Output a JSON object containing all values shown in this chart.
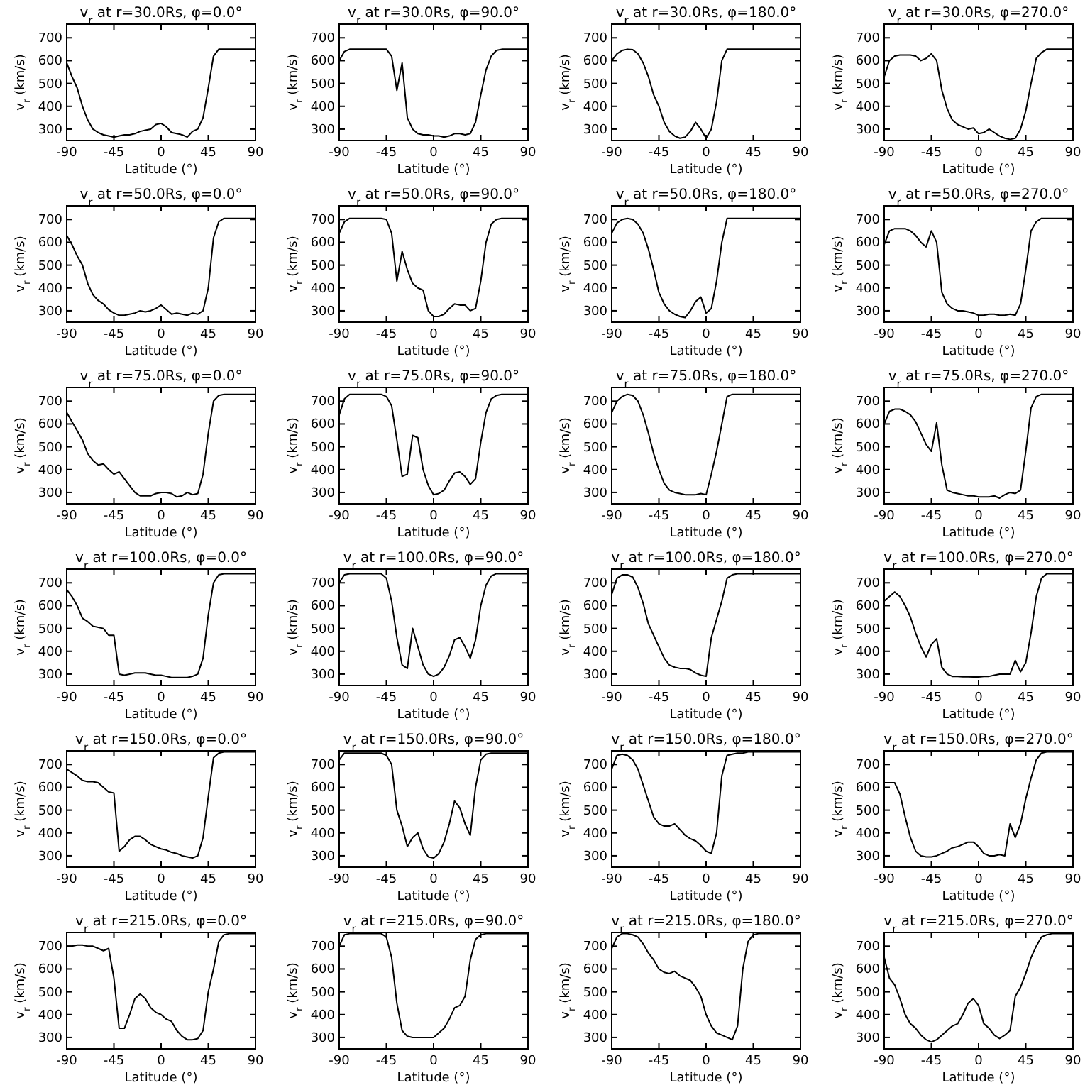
{
  "chart_data": [
    {
      "type": "line",
      "title": "v$_{r}$ at r=30.0Rs, φ=0.0°",
      "xlabel": "Latitude (°)",
      "ylabel": "v$_{r}$ (km/s)",
      "xlim": [
        -90,
        90
      ],
      "ylim": [
        250,
        760
      ],
      "xticks": [
        -90,
        -45,
        0,
        45,
        90
      ],
      "yticks": [
        300,
        400,
        500,
        600,
        700
      ],
      "x": [
        -90,
        -85,
        -80,
        -75,
        -70,
        -65,
        -60,
        -55,
        -50,
        -45,
        -40,
        -35,
        -30,
        -25,
        -20,
        -15,
        -10,
        -5,
        0,
        5,
        10,
        15,
        20,
        25,
        30,
        35,
        40,
        45,
        50,
        55,
        60,
        65,
        70,
        75,
        80,
        85,
        90
      ],
      "series": [
        {
          "color": "#000000",
          "values": [
            590,
            530,
            480,
            400,
            340,
            300,
            285,
            275,
            270,
            265,
            270,
            275,
            275,
            280,
            290,
            295,
            300,
            320,
            325,
            310,
            285,
            280,
            275,
            265,
            290,
            300,
            350,
            480,
            620,
            650,
            650,
            650,
            650,
            650,
            650,
            650,
            650
          ]
        }
      ]
    },
    {
      "type": "line",
      "title": "v$_{r}$ at r=30.0Rs, φ=90.0°",
      "xlabel": "Latitude (°)",
      "ylabel": "v$_{r}$ (km/s)",
      "xlim": [
        -90,
        90
      ],
      "ylim": [
        250,
        760
      ],
      "xticks": [
        -90,
        -45,
        0,
        45,
        90
      ],
      "yticks": [
        300,
        400,
        500,
        600,
        700
      ],
      "x": [
        -90,
        -85,
        -80,
        -75,
        -70,
        -65,
        -60,
        -55,
        -50,
        -45,
        -40,
        -35,
        -30,
        -25,
        -20,
        -15,
        -10,
        -5,
        0,
        5,
        10,
        15,
        20,
        25,
        30,
        35,
        40,
        45,
        50,
        55,
        60,
        65,
        70,
        75,
        80,
        85,
        90
      ],
      "series": [
        {
          "color": "#000000",
          "values": [
            600,
            640,
            650,
            650,
            650,
            650,
            650,
            650,
            650,
            650,
            620,
            470,
            590,
            350,
            300,
            280,
            275,
            275,
            270,
            270,
            265,
            270,
            280,
            280,
            275,
            280,
            330,
            450,
            560,
            620,
            645,
            650,
            650,
            650,
            650,
            650,
            650
          ]
        }
      ]
    },
    {
      "type": "line",
      "title": "v$_{r}$ at r=30.0Rs, φ=180.0°",
      "xlabel": "Latitude (°)",
      "ylabel": "v$_{r}$ (km/s)",
      "xlim": [
        -90,
        90
      ],
      "ylim": [
        250,
        760
      ],
      "xticks": [
        -90,
        -45,
        0,
        45,
        90
      ],
      "yticks": [
        300,
        400,
        500,
        600,
        700
      ],
      "x": [
        -90,
        -85,
        -80,
        -75,
        -70,
        -65,
        -60,
        -55,
        -50,
        -45,
        -40,
        -35,
        -30,
        -25,
        -20,
        -15,
        -10,
        -5,
        0,
        5,
        10,
        15,
        20,
        25,
        30,
        35,
        40,
        45,
        50,
        55,
        60,
        65,
        70,
        75,
        80,
        85,
        90
      ],
      "series": [
        {
          "color": "#000000",
          "values": [
            600,
            630,
            645,
            650,
            648,
            630,
            590,
            530,
            450,
            400,
            330,
            290,
            270,
            260,
            265,
            290,
            330,
            300,
            260,
            300,
            420,
            600,
            650,
            650,
            650,
            650,
            650,
            650,
            650,
            650,
            650,
            650,
            650,
            650,
            650,
            650,
            650
          ]
        }
      ]
    },
    {
      "type": "line",
      "title": "v$_{r}$ at r=30.0Rs, φ=270.0°",
      "xlabel": "Latitude (°)",
      "ylabel": "v$_{r}$ (km/s)",
      "xlim": [
        -90,
        90
      ],
      "ylim": [
        250,
        760
      ],
      "xticks": [
        -90,
        -45,
        0,
        45,
        90
      ],
      "yticks": [
        300,
        400,
        500,
        600,
        700
      ],
      "x": [
        -90,
        -85,
        -80,
        -75,
        -70,
        -65,
        -60,
        -55,
        -50,
        -45,
        -40,
        -35,
        -30,
        -25,
        -20,
        -15,
        -10,
        -5,
        0,
        5,
        10,
        15,
        20,
        25,
        30,
        35,
        40,
        45,
        50,
        55,
        60,
        65,
        70,
        75,
        80,
        85,
        90
      ],
      "series": [
        {
          "color": "#000000",
          "values": [
            530,
            600,
            620,
            625,
            625,
            625,
            620,
            600,
            610,
            630,
            600,
            470,
            390,
            340,
            320,
            310,
            300,
            305,
            280,
            285,
            300,
            285,
            270,
            260,
            255,
            260,
            300,
            380,
            500,
            610,
            635,
            650,
            650,
            650,
            650,
            650,
            650
          ]
        }
      ]
    },
    {
      "type": "line",
      "title": "v$_{r}$ at r=50.0Rs, φ=0.0°",
      "xlabel": "Latitude (°)",
      "ylabel": "v$_{r}$ (km/s)",
      "xlim": [
        -90,
        90
      ],
      "ylim": [
        250,
        760
      ],
      "xticks": [
        -90,
        -45,
        0,
        45,
        90
      ],
      "yticks": [
        300,
        400,
        500,
        600,
        700
      ],
      "x": [
        -90,
        -85,
        -80,
        -75,
        -70,
        -65,
        -60,
        -55,
        -50,
        -45,
        -40,
        -35,
        -30,
        -25,
        -20,
        -15,
        -10,
        -5,
        0,
        5,
        10,
        15,
        20,
        25,
        30,
        35,
        40,
        45,
        50,
        55,
        60,
        65,
        70,
        75,
        80,
        85,
        90
      ],
      "series": [
        {
          "color": "#000000",
          "values": [
            630,
            590,
            540,
            500,
            420,
            370,
            345,
            330,
            305,
            290,
            280,
            280,
            285,
            290,
            300,
            295,
            300,
            310,
            325,
            305,
            285,
            290,
            285,
            280,
            290,
            285,
            300,
            400,
            620,
            690,
            705,
            705,
            705,
            705,
            705,
            705,
            705
          ]
        }
      ]
    },
    {
      "type": "line",
      "title": "v$_{r}$ at r=50.0Rs, φ=90.0°",
      "xlabel": "Latitude (°)",
      "ylabel": "v$_{r}$ (km/s)",
      "xlim": [
        -90,
        90
      ],
      "ylim": [
        250,
        760
      ],
      "xticks": [
        -90,
        -45,
        0,
        45,
        90
      ],
      "yticks": [
        300,
        400,
        500,
        600,
        700
      ],
      "x": [
        -90,
        -85,
        -80,
        -75,
        -70,
        -65,
        -60,
        -55,
        -50,
        -45,
        -40,
        -35,
        -30,
        -25,
        -20,
        -15,
        -10,
        -5,
        0,
        5,
        10,
        15,
        20,
        25,
        30,
        35,
        40,
        45,
        50,
        55,
        60,
        65,
        70,
        75,
        80,
        85,
        90
      ],
      "series": [
        {
          "color": "#000000",
          "values": [
            640,
            690,
            705,
            705,
            705,
            705,
            705,
            705,
            705,
            700,
            640,
            430,
            560,
            480,
            420,
            400,
            390,
            300,
            275,
            275,
            285,
            310,
            330,
            325,
            325,
            300,
            310,
            430,
            600,
            680,
            700,
            705,
            705,
            705,
            705,
            705,
            705
          ]
        }
      ]
    },
    {
      "type": "line",
      "title": "v$_{r}$ at r=50.0Rs, φ=180.0°",
      "xlabel": "Latitude (°)",
      "ylabel": "v$_{r}$ (km/s)",
      "xlim": [
        -90,
        90
      ],
      "ylim": [
        250,
        760
      ],
      "xticks": [
        -90,
        -45,
        0,
        45,
        90
      ],
      "yticks": [
        300,
        400,
        500,
        600,
        700
      ],
      "x": [
        -90,
        -85,
        -80,
        -75,
        -70,
        -65,
        -60,
        -55,
        -50,
        -45,
        -40,
        -35,
        -30,
        -25,
        -20,
        -15,
        -10,
        -5,
        0,
        5,
        10,
        15,
        20,
        25,
        30,
        35,
        40,
        45,
        50,
        55,
        60,
        65,
        70,
        75,
        80,
        85,
        90
      ],
      "series": [
        {
          "color": "#000000",
          "values": [
            640,
            685,
            700,
            705,
            700,
            680,
            640,
            570,
            480,
            380,
            330,
            300,
            285,
            275,
            270,
            300,
            340,
            360,
            290,
            310,
            430,
            600,
            705,
            705,
            705,
            705,
            705,
            705,
            705,
            705,
            705,
            705,
            705,
            705,
            705,
            705,
            705
          ]
        }
      ]
    },
    {
      "type": "line",
      "title": "v$_{r}$ at r=50.0Rs, φ=270.0°",
      "xlabel": "Latitude (°)",
      "ylabel": "v$_{r}$ (km/s)",
      "xlim": [
        -90,
        90
      ],
      "ylim": [
        250,
        760
      ],
      "xticks": [
        -90,
        -45,
        0,
        45,
        90
      ],
      "yticks": [
        300,
        400,
        500,
        600,
        700
      ],
      "x": [
        -90,
        -85,
        -80,
        -75,
        -70,
        -65,
        -60,
        -55,
        -50,
        -45,
        -40,
        -35,
        -30,
        -25,
        -20,
        -15,
        -10,
        -5,
        0,
        5,
        10,
        15,
        20,
        25,
        30,
        35,
        40,
        45,
        50,
        55,
        60,
        65,
        70,
        75,
        80,
        85,
        90
      ],
      "series": [
        {
          "color": "#000000",
          "values": [
            590,
            650,
            660,
            660,
            660,
            650,
            630,
            600,
            580,
            650,
            600,
            380,
            330,
            310,
            300,
            300,
            295,
            290,
            280,
            280,
            285,
            285,
            280,
            280,
            285,
            280,
            330,
            480,
            650,
            690,
            705,
            705,
            705,
            705,
            705,
            705,
            705
          ]
        }
      ]
    },
    {
      "type": "line",
      "title": "v$_{r}$ at r=75.0Rs, φ=0.0°",
      "xlabel": "Latitude (°)",
      "ylabel": "v$_{r}$ (km/s)",
      "xlim": [
        -90,
        90
      ],
      "ylim": [
        250,
        760
      ],
      "xticks": [
        -90,
        -45,
        0,
        45,
        90
      ],
      "yticks": [
        300,
        400,
        500,
        600,
        700
      ],
      "x": [
        -90,
        -85,
        -80,
        -75,
        -70,
        -65,
        -60,
        -55,
        -50,
        -45,
        -40,
        -35,
        -30,
        -25,
        -20,
        -15,
        -10,
        -5,
        0,
        5,
        10,
        15,
        20,
        25,
        30,
        35,
        40,
        45,
        50,
        55,
        60,
        65,
        70,
        75,
        80,
        85,
        90
      ],
      "series": [
        {
          "color": "#000000",
          "values": [
            650,
            610,
            570,
            530,
            470,
            440,
            420,
            425,
            400,
            380,
            390,
            360,
            330,
            300,
            285,
            285,
            285,
            295,
            300,
            300,
            295,
            280,
            285,
            300,
            290,
            295,
            380,
            560,
            700,
            725,
            730,
            730,
            730,
            730,
            730,
            730,
            730
          ]
        }
      ]
    },
    {
      "type": "line",
      "title": "v$_{r}$ at r=75.0Rs, φ=90.0°",
      "xlabel": "Latitude (°)",
      "ylabel": "v$_{r}$ (km/s)",
      "xlim": [
        -90,
        90
      ],
      "ylim": [
        250,
        760
      ],
      "xticks": [
        -90,
        -45,
        0,
        45,
        90
      ],
      "yticks": [
        300,
        400,
        500,
        600,
        700
      ],
      "x": [
        -90,
        -85,
        -80,
        -75,
        -70,
        -65,
        -60,
        -55,
        -50,
        -45,
        -40,
        -35,
        -30,
        -25,
        -20,
        -15,
        -10,
        -5,
        0,
        5,
        10,
        15,
        20,
        25,
        30,
        35,
        40,
        45,
        50,
        55,
        60,
        65,
        70,
        75,
        80,
        85,
        90
      ],
      "series": [
        {
          "color": "#000000",
          "values": [
            640,
            710,
            730,
            730,
            730,
            730,
            730,
            730,
            730,
            720,
            680,
            530,
            370,
            380,
            550,
            540,
            400,
            330,
            290,
            295,
            310,
            350,
            385,
            390,
            370,
            335,
            360,
            520,
            650,
            710,
            725,
            730,
            730,
            730,
            730,
            730,
            730
          ]
        }
      ]
    },
    {
      "type": "line",
      "title": "v$_{r}$ at r=75.0Rs, φ=180.0°",
      "xlabel": "Latitude (°)",
      "ylabel": "v$_{r}$ (km/s)",
      "xlim": [
        -90,
        90
      ],
      "ylim": [
        250,
        760
      ],
      "xticks": [
        -90,
        -45,
        0,
        45,
        90
      ],
      "yticks": [
        300,
        400,
        500,
        600,
        700
      ],
      "x": [
        -90,
        -85,
        -80,
        -75,
        -70,
        -65,
        -60,
        -55,
        -50,
        -45,
        -40,
        -35,
        -30,
        -25,
        -20,
        -15,
        -10,
        -5,
        0,
        5,
        10,
        15,
        20,
        25,
        30,
        35,
        40,
        45,
        50,
        55,
        60,
        65,
        70,
        75,
        80,
        85,
        90
      ],
      "series": [
        {
          "color": "#000000",
          "values": [
            650,
            700,
            720,
            730,
            725,
            700,
            640,
            560,
            470,
            400,
            340,
            310,
            300,
            295,
            290,
            290,
            290,
            295,
            290,
            380,
            480,
            600,
            720,
            730,
            730,
            730,
            730,
            730,
            730,
            730,
            730,
            730,
            730,
            730,
            730,
            730,
            730
          ]
        }
      ]
    },
    {
      "type": "line",
      "title": "v$_{r}$ at r=75.0Rs, φ=270.0°",
      "xlabel": "Latitude (°)",
      "ylabel": "v$_{r}$ (km/s)",
      "xlim": [
        -90,
        90
      ],
      "ylim": [
        250,
        760
      ],
      "xticks": [
        -90,
        -45,
        0,
        45,
        90
      ],
      "yticks": [
        300,
        400,
        500,
        600,
        700
      ],
      "x": [
        -90,
        -85,
        -80,
        -75,
        -70,
        -65,
        -60,
        -55,
        -50,
        -45,
        -40,
        -35,
        -30,
        -25,
        -20,
        -15,
        -10,
        -5,
        0,
        5,
        10,
        15,
        20,
        25,
        30,
        35,
        40,
        45,
        50,
        55,
        60,
        65,
        70,
        75,
        80,
        85,
        90
      ],
      "series": [
        {
          "color": "#000000",
          "values": [
            600,
            655,
            665,
            665,
            655,
            640,
            610,
            560,
            510,
            480,
            605,
            420,
            310,
            300,
            295,
            290,
            285,
            285,
            280,
            280,
            280,
            285,
            275,
            290,
            300,
            295,
            310,
            480,
            670,
            720,
            730,
            730,
            730,
            730,
            730,
            730,
            730
          ]
        }
      ]
    },
    {
      "type": "line",
      "title": "v$_{r}$ at r=100.0Rs, φ=0.0°",
      "xlabel": "Latitude (°)",
      "ylabel": "v$_{r}$ (km/s)",
      "xlim": [
        -90,
        90
      ],
      "ylim": [
        250,
        760
      ],
      "xticks": [
        -90,
        -45,
        0,
        45,
        90
      ],
      "yticks": [
        300,
        400,
        500,
        600,
        700
      ],
      "x": [
        -90,
        -85,
        -80,
        -75,
        -70,
        -65,
        -60,
        -55,
        -50,
        -45,
        -40,
        -35,
        -30,
        -25,
        -20,
        -15,
        -10,
        -5,
        0,
        5,
        10,
        15,
        20,
        25,
        30,
        35,
        40,
        45,
        50,
        55,
        60,
        65,
        70,
        75,
        80,
        85,
        90
      ],
      "series": [
        {
          "color": "#000000",
          "values": [
            670,
            640,
            600,
            545,
            530,
            510,
            505,
            500,
            470,
            470,
            300,
            295,
            300,
            305,
            305,
            305,
            300,
            295,
            295,
            290,
            285,
            285,
            285,
            285,
            290,
            300,
            370,
            560,
            700,
            735,
            740,
            740,
            740,
            740,
            740,
            740,
            740
          ]
        }
      ]
    },
    {
      "type": "line",
      "title": "v$_{r}$ at r=100.0Rs, φ=90.0°",
      "xlabel": "Latitude (°)",
      "ylabel": "v$_{r}$ (km/s)",
      "xlim": [
        -90,
        90
      ],
      "ylim": [
        250,
        760
      ],
      "xticks": [
        -90,
        -45,
        0,
        45,
        90
      ],
      "yticks": [
        300,
        400,
        500,
        600,
        700
      ],
      "x": [
        -90,
        -85,
        -80,
        -75,
        -70,
        -65,
        -60,
        -55,
        -50,
        -45,
        -40,
        -35,
        -30,
        -25,
        -20,
        -15,
        -10,
        -5,
        0,
        5,
        10,
        15,
        20,
        25,
        30,
        35,
        40,
        45,
        50,
        55,
        60,
        65,
        70,
        75,
        80,
        85,
        90
      ],
      "series": [
        {
          "color": "#000000",
          "values": [
            700,
            735,
            740,
            740,
            740,
            740,
            740,
            740,
            740,
            720,
            620,
            460,
            340,
            325,
            500,
            420,
            340,
            300,
            290,
            300,
            330,
            380,
            450,
            460,
            420,
            370,
            450,
            600,
            690,
            730,
            740,
            740,
            740,
            740,
            740,
            740,
            740
          ]
        }
      ]
    },
    {
      "type": "line",
      "title": "v$_{r}$ at r=100.0Rs, φ=180.0°",
      "xlabel": "Latitude (°)",
      "ylabel": "v$_{r}$ (km/s)",
      "xlim": [
        -90,
        90
      ],
      "ylim": [
        250,
        760
      ],
      "xticks": [
        -90,
        -45,
        0,
        45,
        90
      ],
      "yticks": [
        300,
        400,
        500,
        600,
        700
      ],
      "x": [
        -90,
        -85,
        -80,
        -75,
        -70,
        -65,
        -60,
        -55,
        -50,
        -45,
        -40,
        -35,
        -30,
        -25,
        -20,
        -15,
        -10,
        -5,
        0,
        5,
        10,
        15,
        20,
        25,
        30,
        35,
        40,
        45,
        50,
        55,
        60,
        65,
        70,
        75,
        80,
        85,
        90
      ],
      "series": [
        {
          "color": "#000000",
          "values": [
            650,
            720,
            735,
            735,
            725,
            680,
            610,
            520,
            470,
            420,
            370,
            340,
            330,
            325,
            325,
            320,
            305,
            295,
            290,
            460,
            540,
            620,
            720,
            735,
            740,
            740,
            740,
            740,
            740,
            740,
            740,
            740,
            740,
            740,
            740,
            740,
            740
          ]
        }
      ]
    },
    {
      "type": "line",
      "title": "v$_{r}$ at r=100.0Rs, φ=270.0°",
      "xlabel": "Latitude (°)",
      "ylabel": "v$_{r}$ (km/s)",
      "xlim": [
        -90,
        90
      ],
      "ylim": [
        250,
        760
      ],
      "xticks": [
        -90,
        -45,
        0,
        45,
        90
      ],
      "yticks": [
        300,
        400,
        500,
        600,
        700
      ],
      "x": [
        -90,
        -85,
        -80,
        -75,
        -70,
        -65,
        -60,
        -55,
        -50,
        -45,
        -40,
        -35,
        -30,
        -25,
        -20,
        -15,
        -10,
        -5,
        0,
        5,
        10,
        15,
        20,
        25,
        30,
        35,
        40,
        45,
        50,
        55,
        60,
        65,
        70,
        75,
        80,
        85,
        90
      ],
      "series": [
        {
          "color": "#000000",
          "values": [
            620,
            640,
            660,
            640,
            600,
            550,
            480,
            420,
            375,
            430,
            455,
            330,
            300,
            290,
            290,
            288,
            288,
            287,
            287,
            290,
            290,
            295,
            300,
            300,
            300,
            360,
            310,
            350,
            480,
            640,
            720,
            740,
            740,
            740,
            740,
            740,
            740
          ]
        }
      ]
    },
    {
      "type": "line",
      "title": "v$_{r}$ at r=150.0Rs, φ=0.0°",
      "xlabel": "Latitude (°)",
      "ylabel": "v$_{r}$ (km/s)",
      "xlim": [
        -90,
        90
      ],
      "ylim": [
        250,
        760
      ],
      "xticks": [
        -90,
        -45,
        0,
        45,
        90
      ],
      "yticks": [
        300,
        400,
        500,
        600,
        700
      ],
      "x": [
        -90,
        -85,
        -80,
        -75,
        -70,
        -65,
        -60,
        -55,
        -50,
        -45,
        -40,
        -35,
        -30,
        -25,
        -20,
        -15,
        -10,
        -5,
        0,
        5,
        10,
        15,
        20,
        25,
        30,
        35,
        40,
        45,
        50,
        55,
        60,
        65,
        70,
        75,
        80,
        85,
        90
      ],
      "series": [
        {
          "color": "#000000",
          "values": [
            680,
            665,
            650,
            630,
            625,
            625,
            620,
            600,
            580,
            575,
            320,
            340,
            370,
            385,
            385,
            370,
            350,
            340,
            330,
            325,
            315,
            310,
            300,
            295,
            290,
            300,
            380,
            560,
            730,
            750,
            755,
            755,
            755,
            755,
            755,
            755,
            755
          ]
        }
      ]
    },
    {
      "type": "line",
      "title": "v$_{r}$ at r=150.0Rs, φ=90.0°",
      "xlabel": "Latitude (°)",
      "ylabel": "v$_{r}$ (km/s)",
      "xlim": [
        -90,
        90
      ],
      "ylim": [
        250,
        760
      ],
      "xticks": [
        -90,
        -45,
        0,
        45,
        90
      ],
      "yticks": [
        300,
        400,
        500,
        600,
        700
      ],
      "x": [
        -90,
        -85,
        -80,
        -75,
        -70,
        -65,
        -60,
        -55,
        -50,
        -45,
        -40,
        -35,
        -30,
        -25,
        -20,
        -15,
        -10,
        -5,
        0,
        5,
        10,
        15,
        20,
        25,
        30,
        35,
        40,
        45,
        50,
        55,
        60,
        65,
        70,
        75,
        80,
        85,
        90
      ],
      "series": [
        {
          "color": "#000000",
          "values": [
            720,
            750,
            750,
            750,
            750,
            750,
            750,
            750,
            750,
            740,
            700,
            500,
            430,
            340,
            380,
            400,
            330,
            295,
            290,
            310,
            360,
            440,
            540,
            510,
            440,
            390,
            600,
            720,
            745,
            750,
            750,
            750,
            750,
            750,
            750,
            750,
            750
          ]
        }
      ]
    },
    {
      "type": "line",
      "title": "v$_{r}$ at r=150.0Rs, φ=180.0°",
      "xlabel": "Latitude (°)",
      "ylabel": "v$_{r}$ (km/s)",
      "xlim": [
        -90,
        90
      ],
      "ylim": [
        250,
        760
      ],
      "xticks": [
        -90,
        -45,
        0,
        45,
        90
      ],
      "yticks": [
        300,
        400,
        500,
        600,
        700
      ],
      "x": [
        -90,
        -85,
        -80,
        -75,
        -70,
        -65,
        -60,
        -55,
        -50,
        -45,
        -40,
        -35,
        -30,
        -25,
        -20,
        -15,
        -10,
        -5,
        0,
        5,
        10,
        15,
        20,
        25,
        30,
        35,
        40,
        45,
        50,
        55,
        60,
        65,
        70,
        75,
        80,
        85,
        90
      ],
      "series": [
        {
          "color": "#000000",
          "values": [
            680,
            740,
            745,
            740,
            720,
            680,
            610,
            540,
            470,
            440,
            430,
            430,
            440,
            415,
            390,
            375,
            365,
            345,
            320,
            310,
            400,
            650,
            740,
            745,
            750,
            750,
            755,
            755,
            755,
            755,
            755,
            755,
            755,
            755,
            755,
            755,
            755
          ]
        }
      ]
    },
    {
      "type": "line",
      "title": "v$_{r}$ at r=150.0Rs, φ=270.0°",
      "xlabel": "Latitude (°)",
      "ylabel": "v$_{r}$ (km/s)",
      "xlim": [
        -90,
        90
      ],
      "ylim": [
        250,
        760
      ],
      "xticks": [
        -90,
        -45,
        0,
        45,
        90
      ],
      "yticks": [
        300,
        400,
        500,
        600,
        700
      ],
      "x": [
        -90,
        -85,
        -80,
        -75,
        -70,
        -65,
        -60,
        -55,
        -50,
        -45,
        -40,
        -35,
        -30,
        -25,
        -20,
        -15,
        -10,
        -5,
        0,
        5,
        10,
        15,
        20,
        25,
        30,
        35,
        40,
        45,
        50,
        55,
        60,
        65,
        70,
        75,
        80,
        85,
        90
      ],
      "series": [
        {
          "color": "#000000",
          "values": [
            620,
            620,
            620,
            570,
            470,
            380,
            320,
            300,
            295,
            295,
            300,
            310,
            320,
            335,
            340,
            350,
            360,
            360,
            340,
            310,
            300,
            300,
            305,
            300,
            440,
            380,
            440,
            550,
            640,
            720,
            750,
            755,
            755,
            755,
            755,
            755,
            755
          ]
        }
      ]
    },
    {
      "type": "line",
      "title": "v$_{r}$ at r=215.0Rs, φ=0.0°",
      "xlabel": "Latitude (°)",
      "ylabel": "v$_{r}$ (km/s)",
      "xlim": [
        -90,
        90
      ],
      "ylim": [
        250,
        760
      ],
      "xticks": [
        -90,
        -45,
        0,
        45,
        90
      ],
      "yticks": [
        300,
        400,
        500,
        600,
        700
      ],
      "x": [
        -90,
        -85,
        -80,
        -75,
        -70,
        -65,
        -60,
        -55,
        -50,
        -45,
        -40,
        -35,
        -30,
        -25,
        -20,
        -15,
        -10,
        -5,
        0,
        5,
        10,
        15,
        20,
        25,
        30,
        35,
        40,
        45,
        50,
        55,
        60,
        65,
        70,
        75,
        80,
        85,
        90
      ],
      "series": [
        {
          "color": "#000000",
          "values": [
            700,
            700,
            705,
            705,
            700,
            700,
            690,
            680,
            690,
            560,
            340,
            340,
            400,
            470,
            490,
            470,
            430,
            410,
            400,
            380,
            370,
            330,
            305,
            290,
            290,
            295,
            330,
            500,
            600,
            720,
            750,
            755,
            755,
            755,
            755,
            755,
            755
          ]
        }
      ]
    },
    {
      "type": "line",
      "title": "v$_{r}$ at r=215.0Rs, φ=90.0°",
      "xlabel": "Latitude (°)",
      "ylabel": "v$_{r}$ (km/s)",
      "xlim": [
        -90,
        90
      ],
      "ylim": [
        250,
        760
      ],
      "xticks": [
        -90,
        -45,
        0,
        45,
        90
      ],
      "yticks": [
        300,
        400,
        500,
        600,
        700
      ],
      "x": [
        -90,
        -85,
        -80,
        -75,
        -70,
        -65,
        -60,
        -55,
        -50,
        -45,
        -40,
        -35,
        -30,
        -25,
        -20,
        -15,
        -10,
        -5,
        0,
        5,
        10,
        15,
        20,
        25,
        30,
        35,
        40,
        45,
        50,
        55,
        60,
        65,
        70,
        75,
        80,
        85,
        90
      ],
      "series": [
        {
          "color": "#000000",
          "values": [
            700,
            750,
            755,
            755,
            755,
            755,
            755,
            755,
            755,
            740,
            650,
            450,
            330,
            305,
            300,
            300,
            300,
            300,
            300,
            320,
            340,
            380,
            430,
            440,
            480,
            640,
            730,
            750,
            755,
            755,
            755,
            755,
            755,
            755,
            755,
            755,
            755
          ]
        }
      ]
    },
    {
      "type": "line",
      "title": "v$_{r}$ at r=215.0Rs, φ=180.0°",
      "xlabel": "Latitude (°)",
      "ylabel": "v$_{r}$ (km/s)",
      "xlim": [
        -90,
        90
      ],
      "ylim": [
        250,
        760
      ],
      "xticks": [
        -90,
        -45,
        0,
        45,
        90
      ],
      "yticks": [
        300,
        400,
        500,
        600,
        700
      ],
      "x": [
        -90,
        -85,
        -80,
        -75,
        -70,
        -65,
        -60,
        -55,
        -50,
        -45,
        -40,
        -35,
        -30,
        -25,
        -20,
        -15,
        -10,
        -5,
        0,
        5,
        10,
        15,
        20,
        25,
        30,
        35,
        40,
        45,
        50,
        55,
        60,
        65,
        70,
        75,
        80,
        85,
        90
      ],
      "series": [
        {
          "color": "#000000",
          "values": [
            690,
            740,
            755,
            755,
            750,
            740,
            710,
            670,
            640,
            600,
            585,
            580,
            590,
            570,
            560,
            550,
            520,
            480,
            400,
            350,
            320,
            310,
            300,
            290,
            350,
            600,
            720,
            750,
            755,
            755,
            755,
            755,
            755,
            755,
            755,
            755,
            755
          ]
        }
      ]
    },
    {
      "type": "line",
      "title": "v$_{r}$ at r=215.0Rs, φ=270.0°",
      "xlabel": "Latitude (°)",
      "ylabel": "v$_{r}$ (km/s)",
      "xlim": [
        -90,
        90
      ],
      "ylim": [
        250,
        760
      ],
      "xticks": [
        -90,
        -45,
        0,
        45,
        90
      ],
      "yticks": [
        300,
        400,
        500,
        600,
        700
      ],
      "x": [
        -90,
        -85,
        -80,
        -75,
        -70,
        -65,
        -60,
        -55,
        -50,
        -45,
        -40,
        -35,
        -30,
        -25,
        -20,
        -15,
        -10,
        -5,
        0,
        5,
        10,
        15,
        20,
        25,
        30,
        35,
        40,
        45,
        50,
        55,
        60,
        65,
        70,
        75,
        80,
        85,
        90
      ],
      "series": [
        {
          "color": "#000000",
          "values": [
            650,
            560,
            530,
            470,
            400,
            360,
            340,
            310,
            290,
            280,
            290,
            310,
            330,
            350,
            360,
            400,
            450,
            470,
            440,
            360,
            340,
            310,
            295,
            310,
            330,
            480,
            520,
            580,
            650,
            700,
            740,
            750,
            755,
            755,
            755,
            755,
            755
          ]
        }
      ]
    }
  ]
}
